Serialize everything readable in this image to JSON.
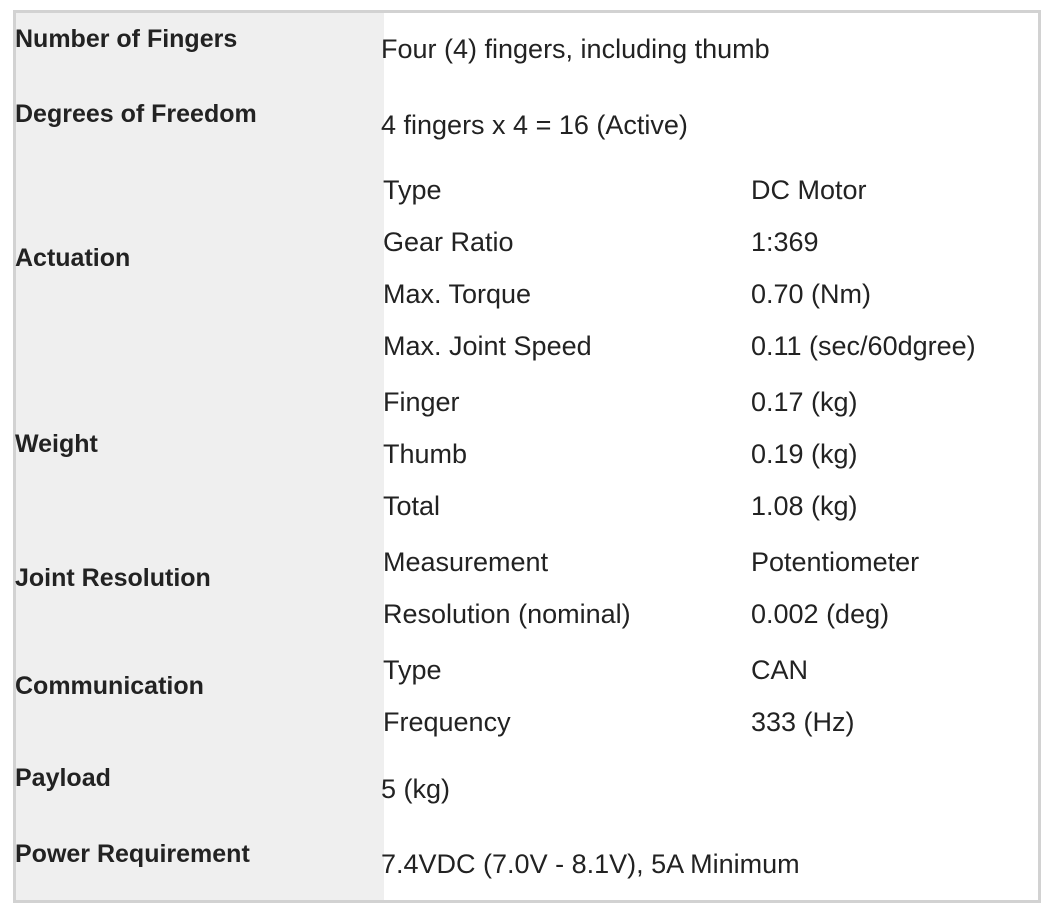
{
  "spec_table": {
    "number_of_fingers": {
      "label": "Number of Fingers",
      "value": "Four (4) fingers, including thumb"
    },
    "degrees_of_freedom": {
      "label": "Degrees of Freedom",
      "value": "4 fingers x 4 = 16 (Active)"
    },
    "actuation": {
      "label": "Actuation",
      "rows": [
        {
          "name": "Type",
          "value": "DC Motor"
        },
        {
          "name": "Gear Ratio",
          "value": "1:369"
        },
        {
          "name": "Max. Torque",
          "value": "0.70 (Nm)"
        },
        {
          "name": "Max. Joint Speed",
          "value": "0.11 (sec/60dgree)"
        }
      ]
    },
    "weight": {
      "label": "Weight",
      "rows": [
        {
          "name": "Finger",
          "value": "0.17 (kg)"
        },
        {
          "name": "Thumb",
          "value": "0.19 (kg)"
        },
        {
          "name": "Total",
          "value": "1.08 (kg)"
        }
      ]
    },
    "joint_resolution": {
      "label": "Joint Resolution",
      "rows": [
        {
          "name": "Measurement",
          "value": "Potentiometer"
        },
        {
          "name": "Resolution (nominal)",
          "value": "0.002 (deg)"
        }
      ]
    },
    "communication": {
      "label": "Communication",
      "rows": [
        {
          "name": "Type",
          "value": "CAN"
        },
        {
          "name": "Frequency",
          "value": "333 (Hz)"
        }
      ]
    },
    "payload": {
      "label": "Payload",
      "value": "5 (kg)"
    },
    "power_requirement": {
      "label": "Power Requirement",
      "value": "7.4VDC (7.0V - 8.1V), 5A Minimum"
    }
  }
}
